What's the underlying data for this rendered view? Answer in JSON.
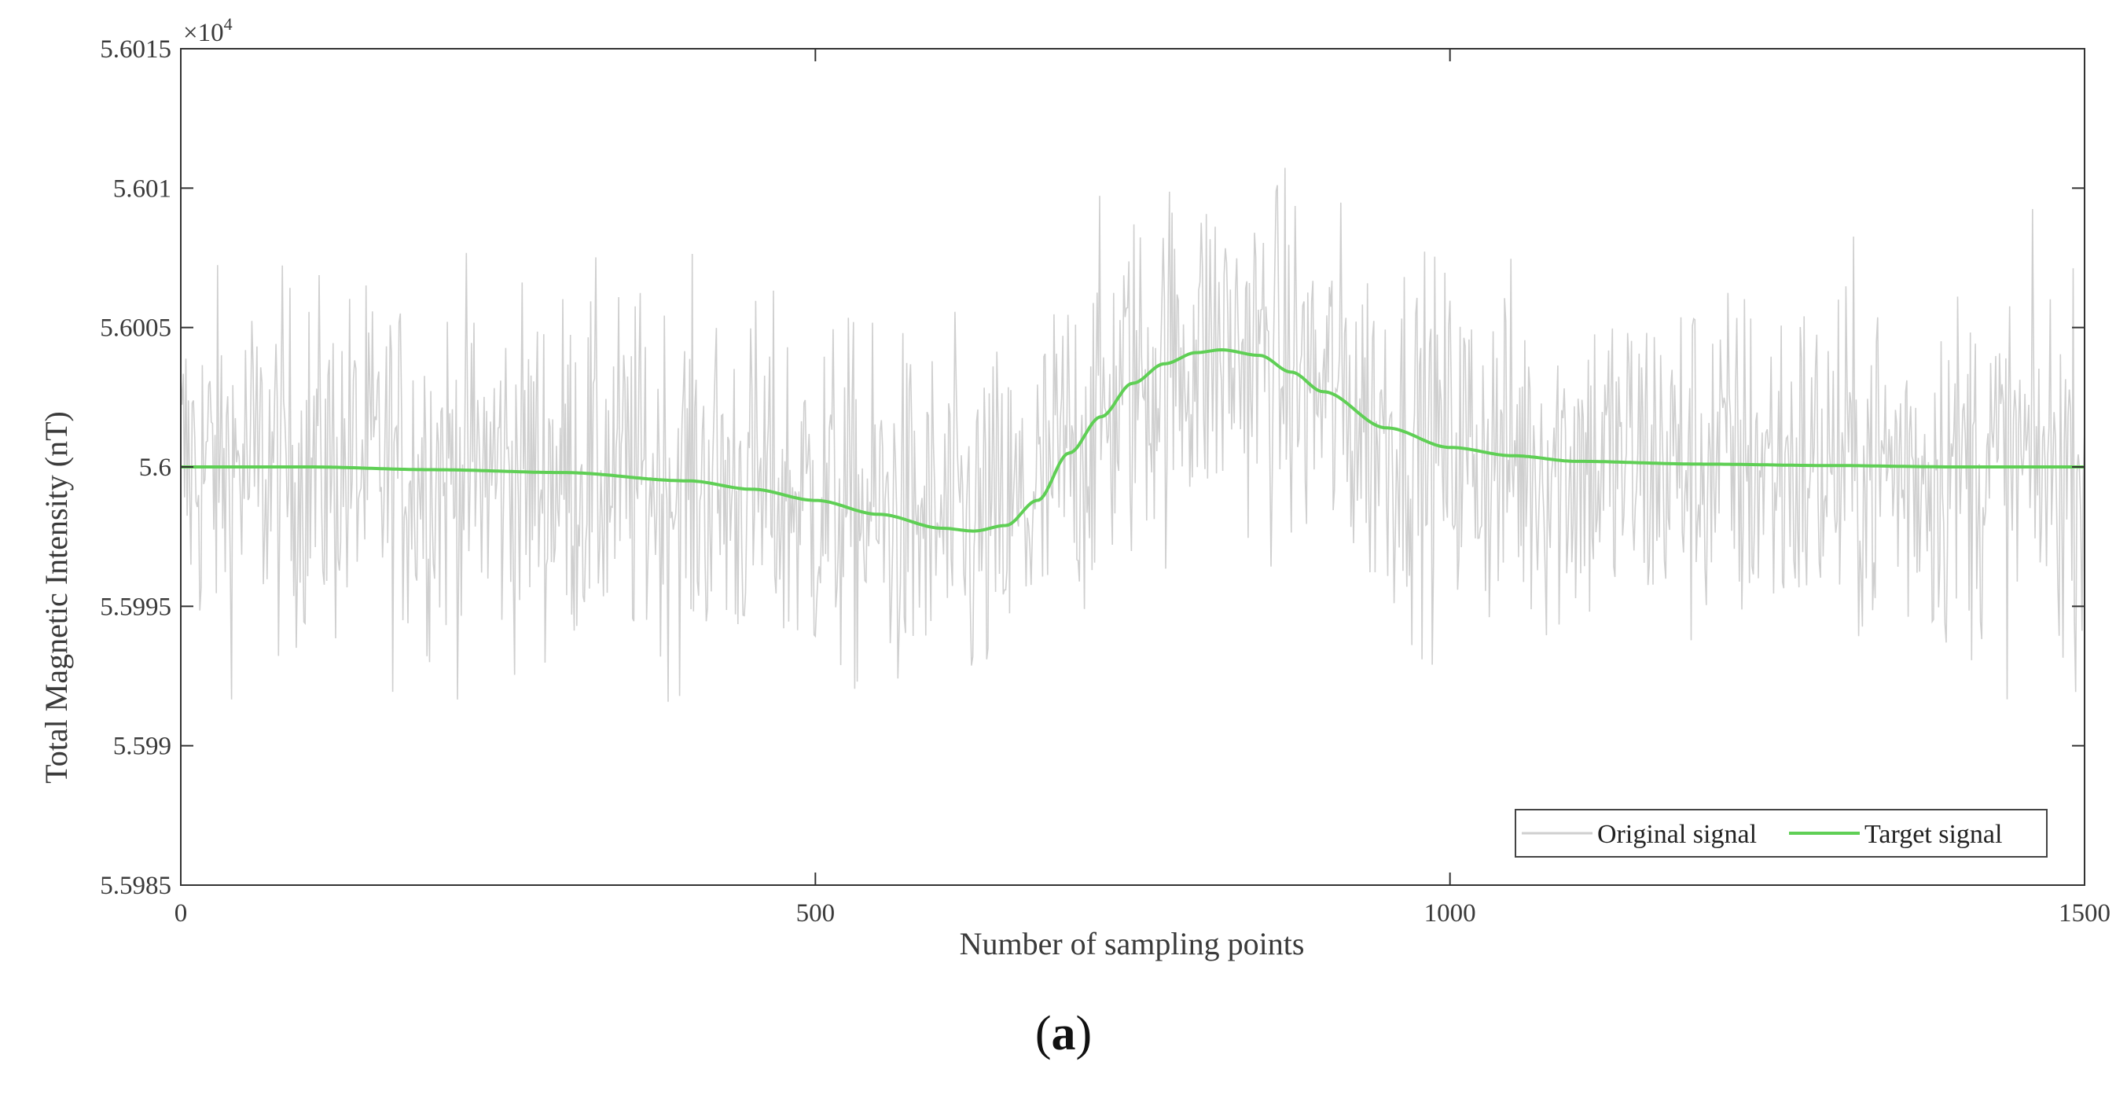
{
  "caption": {
    "open": "(",
    "letter": "a",
    "close": ")"
  },
  "chart_data": {
    "type": "line",
    "xlabel": "Number of sampling points",
    "ylabel": "Total Magnetic Intensity (nT)",
    "y_exponent_label": "×10",
    "y_exponent_power": "4",
    "xlim": [
      0,
      1500
    ],
    "ylim": [
      5.5985,
      5.6015
    ],
    "x_ticks": [
      0,
      500,
      1000,
      1500
    ],
    "x_tick_labels": [
      "0",
      "500",
      "1000",
      "1500"
    ],
    "y_ticks": [
      5.5985,
      5.599,
      5.5995,
      5.6,
      5.6005,
      5.601,
      5.6015
    ],
    "y_tick_labels": [
      "5.5985",
      "5.599",
      "5.5995",
      "5.6",
      "5.6005",
      "5.601",
      "5.6015"
    ],
    "grid": false,
    "legend_position": "bottom-right",
    "series": [
      {
        "name": "Original signal",
        "color": "#cfcfcf",
        "style": "noisy",
        "noise_amplitude": 0.00035,
        "points": 1500
      },
      {
        "name": "Target signal",
        "color": "#5fcf55",
        "style": "smooth",
        "x": [
          0,
          100,
          200,
          300,
          400,
          450,
          500,
          550,
          600,
          625,
          650,
          675,
          700,
          725,
          750,
          775,
          800,
          820,
          850,
          875,
          900,
          950,
          1000,
          1050,
          1100,
          1200,
          1300,
          1400,
          1500
        ],
        "y": [
          5.6,
          5.6,
          5.59999,
          5.59998,
          5.59995,
          5.59992,
          5.59988,
          5.59983,
          5.59978,
          5.59977,
          5.59979,
          5.59988,
          5.60005,
          5.60018,
          5.6003,
          5.60037,
          5.60041,
          5.60042,
          5.6004,
          5.60034,
          5.60027,
          5.60014,
          5.60007,
          5.60004,
          5.60002,
          5.60001,
          5.600005,
          5.6,
          5.6
        ]
      }
    ]
  }
}
